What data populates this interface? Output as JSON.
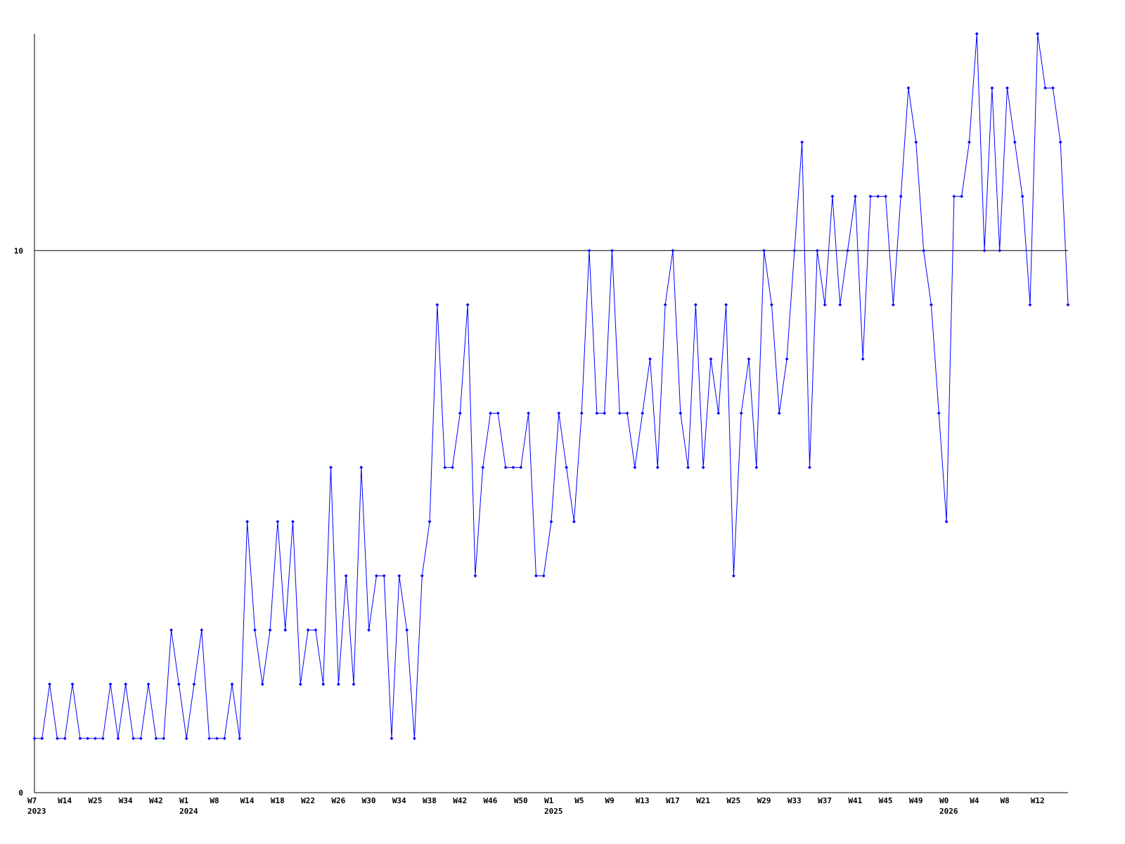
{
  "chart_data": {
    "type": "line",
    "title": "",
    "xlabel": "",
    "ylabel": "",
    "ylim": [
      0,
      14
    ],
    "yticks": [
      0,
      10
    ],
    "reference_line": 10,
    "grid": false,
    "colors": {
      "series": "#0000ff",
      "axis": "#000000"
    },
    "x_tick_labels": [
      {
        "index": 0,
        "label": "W7",
        "year": "2023"
      },
      {
        "index": 4,
        "label": "W14"
      },
      {
        "index": 8,
        "label": "W25"
      },
      {
        "index": 12,
        "label": "W34"
      },
      {
        "index": 16,
        "label": "W42"
      },
      {
        "index": 20,
        "label": "W1",
        "year": "2024"
      },
      {
        "index": 24,
        "label": "W8"
      },
      {
        "index": 28,
        "label": "W14"
      },
      {
        "index": 32,
        "label": "W18"
      },
      {
        "index": 36,
        "label": "W22"
      },
      {
        "index": 40,
        "label": "W26"
      },
      {
        "index": 44,
        "label": "W30"
      },
      {
        "index": 48,
        "label": "W34"
      },
      {
        "index": 52,
        "label": "W38"
      },
      {
        "index": 56,
        "label": "W42"
      },
      {
        "index": 60,
        "label": "W46"
      },
      {
        "index": 64,
        "label": "W50"
      },
      {
        "index": 68,
        "label": "W1",
        "year": "2025"
      },
      {
        "index": 72,
        "label": "W5"
      },
      {
        "index": 76,
        "label": "W9"
      },
      {
        "index": 80,
        "label": "W13"
      },
      {
        "index": 84,
        "label": "W17"
      },
      {
        "index": 88,
        "label": "W21"
      },
      {
        "index": 92,
        "label": "W25"
      },
      {
        "index": 96,
        "label": "W29"
      },
      {
        "index": 100,
        "label": "W33"
      },
      {
        "index": 104,
        "label": "W37"
      },
      {
        "index": 108,
        "label": "W41"
      },
      {
        "index": 112,
        "label": "W45"
      },
      {
        "index": 116,
        "label": "W49"
      },
      {
        "index": 120,
        "label": "W0",
        "year": "2026"
      },
      {
        "index": 124,
        "label": "W4"
      },
      {
        "index": 128,
        "label": "W8"
      },
      {
        "index": 132,
        "label": "W12"
      }
    ],
    "series": [
      {
        "values": [
          1,
          1,
          2,
          1,
          1,
          2,
          1,
          1,
          1,
          1,
          2,
          1,
          2,
          1,
          1,
          2,
          1,
          1,
          3,
          2,
          1,
          2,
          3,
          1,
          1,
          1,
          2,
          1,
          5,
          3,
          2,
          3,
          5,
          3,
          5,
          2,
          3,
          3,
          2,
          6,
          2,
          4,
          2,
          6,
          3,
          4,
          4,
          1,
          4,
          3,
          1,
          4,
          5,
          9,
          6,
          6,
          7,
          9,
          4,
          6,
          7,
          7,
          6,
          6,
          6,
          7,
          4,
          4,
          5,
          7,
          6,
          5,
          7,
          10,
          7,
          7,
          10,
          7,
          7,
          6,
          7,
          8,
          6,
          9,
          10,
          7,
          6,
          9,
          6,
          8,
          7,
          9,
          4,
          7,
          8,
          6,
          10,
          9,
          7,
          8,
          10,
          12,
          6,
          10,
          9,
          11,
          9,
          10,
          11,
          8,
          11,
          11,
          11,
          9,
          11,
          13,
          12,
          10,
          9,
          7,
          5,
          11,
          11,
          12,
          14,
          10,
          13,
          10,
          13,
          12,
          11,
          9,
          14,
          13,
          13,
          12,
          9
        ]
      }
    ]
  }
}
